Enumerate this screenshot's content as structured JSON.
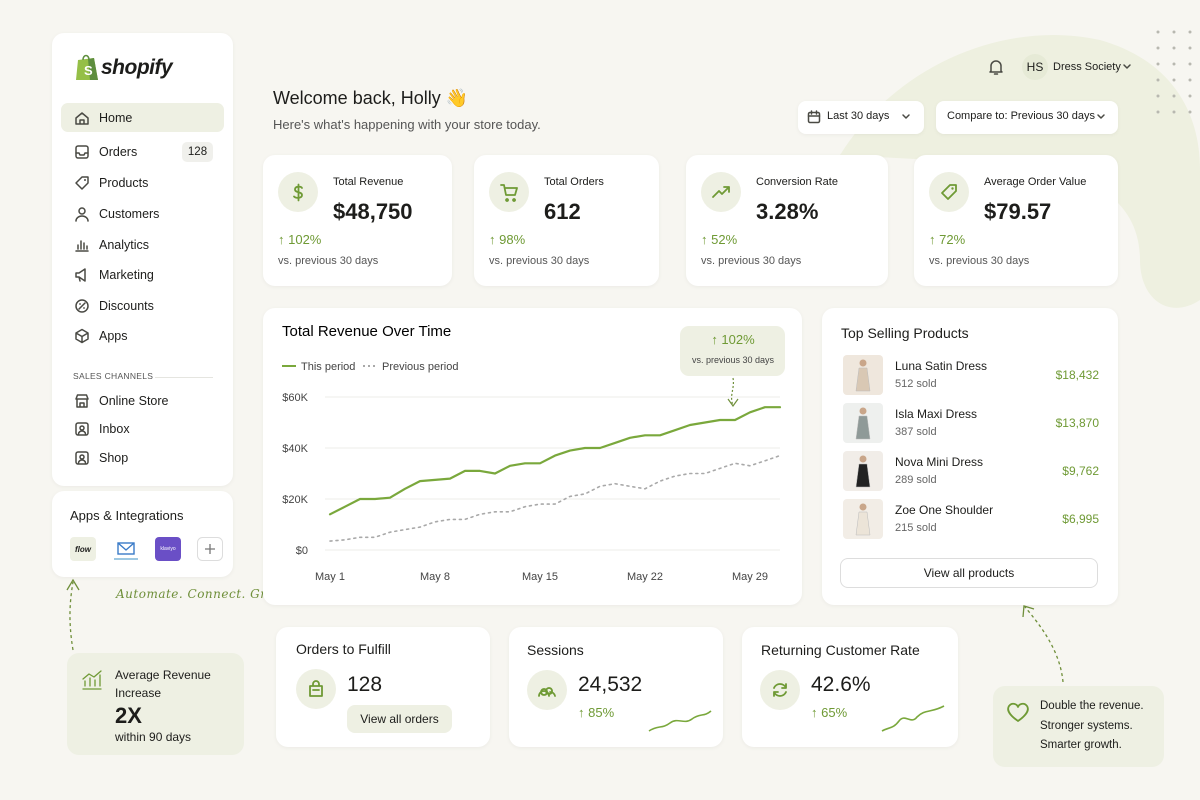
{
  "brand": "shopify",
  "nav": {
    "items": [
      {
        "label": "Home"
      },
      {
        "label": "Orders",
        "badge": "128"
      },
      {
        "label": "Products"
      },
      {
        "label": "Customers"
      },
      {
        "label": "Analytics"
      },
      {
        "label": "Marketing"
      },
      {
        "label": "Discounts"
      },
      {
        "label": "Apps"
      }
    ],
    "section_title": "SALES CHANNELS",
    "channels": [
      "Online Store",
      "Inbox",
      "Shop"
    ]
  },
  "apps": {
    "title": "Apps & Integrations",
    "items": [
      "flow",
      "klaviyo"
    ]
  },
  "tagline": "Automate. Connect. Grow.",
  "promo": {
    "title": "Average Revenue Increase",
    "value": "2X",
    "note": "within 90 days"
  },
  "header": {
    "initials": "HS",
    "store": "Dress Society",
    "welcome": "Welcome back, Holly 👋",
    "subtitle": "Here's what's happening with your store today.",
    "date_filter": "Last 30 days",
    "compare": "Compare to: Previous 30 days"
  },
  "kpis": [
    {
      "label": "Total Revenue",
      "value": "$48,750",
      "change": "↑ 102%",
      "note": "vs. previous 30 days"
    },
    {
      "label": "Total Orders",
      "value": "612",
      "change": "↑ 98%",
      "note": "vs. previous 30 days"
    },
    {
      "label": "Conversion Rate",
      "value": "3.28%",
      "change": "↑ 52%",
      "note": "vs. previous 30 days"
    },
    {
      "label": "Average Order Value",
      "value": "$79.57",
      "change": "↑ 72%",
      "note": "vs. previous 30 days"
    }
  ],
  "chart_data": {
    "type": "line",
    "title": "Total Revenue Over Time",
    "annotation": {
      "text": "↑ 102%",
      "note": "vs. previous 30 days"
    },
    "categories": [
      "May 1",
      null,
      null,
      null,
      null,
      null,
      null,
      "May 8",
      null,
      null,
      null,
      null,
      null,
      null,
      "May 15",
      null,
      null,
      null,
      null,
      null,
      null,
      "May 22",
      null,
      null,
      null,
      null,
      null,
      null,
      "May 29",
      null,
      null
    ],
    "series": [
      {
        "name": "This period",
        "color": "#7aa83c",
        "dashed": false,
        "values": [
          14000,
          17000,
          20000,
          20000,
          20500,
          24000,
          27000,
          27500,
          28000,
          31000,
          31000,
          30000,
          33000,
          34000,
          34000,
          37000,
          39000,
          40000,
          40000,
          42000,
          44000,
          45000,
          45000,
          47000,
          49000,
          50000,
          51000,
          51000,
          54000,
          56000,
          56000
        ]
      },
      {
        "name": "Previous period",
        "color": "#a9a9a9",
        "dashed": true,
        "values": [
          3500,
          4000,
          5000,
          5000,
          7000,
          8000,
          9000,
          11000,
          12000,
          12000,
          14000,
          15000,
          15000,
          17000,
          18000,
          18000,
          21000,
          22000,
          25000,
          26000,
          25000,
          24000,
          27000,
          29000,
          30000,
          30000,
          32000,
          34000,
          33000,
          35000,
          37000
        ]
      }
    ],
    "ylim": [
      0,
      60000
    ],
    "yticks": [
      {
        "value": 0,
        "label": "$0"
      },
      {
        "value": 20000,
        "label": "$20K"
      },
      {
        "value": 40000,
        "label": "$40K"
      },
      {
        "value": 60000,
        "label": "$60K"
      }
    ],
    "grid": true
  },
  "top_products": {
    "title": "Top Selling Products",
    "items": [
      {
        "name": "Luna Satin Dress",
        "sold": "512 sold",
        "revenue": "$18,432"
      },
      {
        "name": "Isla Maxi Dress",
        "sold": "387 sold",
        "revenue": "$13,870"
      },
      {
        "name": "Nova Mini Dress",
        "sold": "289 sold",
        "revenue": "$9,762"
      },
      {
        "name": "Zoe One Shoulder",
        "sold": "215 sold",
        "revenue": "$6,995"
      }
    ],
    "button": "View all products"
  },
  "orders_to_fulfill": {
    "title": "Orders to Fulfill",
    "value": "128",
    "button": "View all orders"
  },
  "sessions": {
    "title": "Sessions",
    "value": "24,532",
    "change": "↑ 85%"
  },
  "returning": {
    "title": "Returning Customer Rate",
    "value": "42.6%",
    "change": "↑ 65%"
  },
  "callout": {
    "lines": [
      "Double the revenue.",
      "Stronger systems.",
      "Smarter growth."
    ]
  }
}
